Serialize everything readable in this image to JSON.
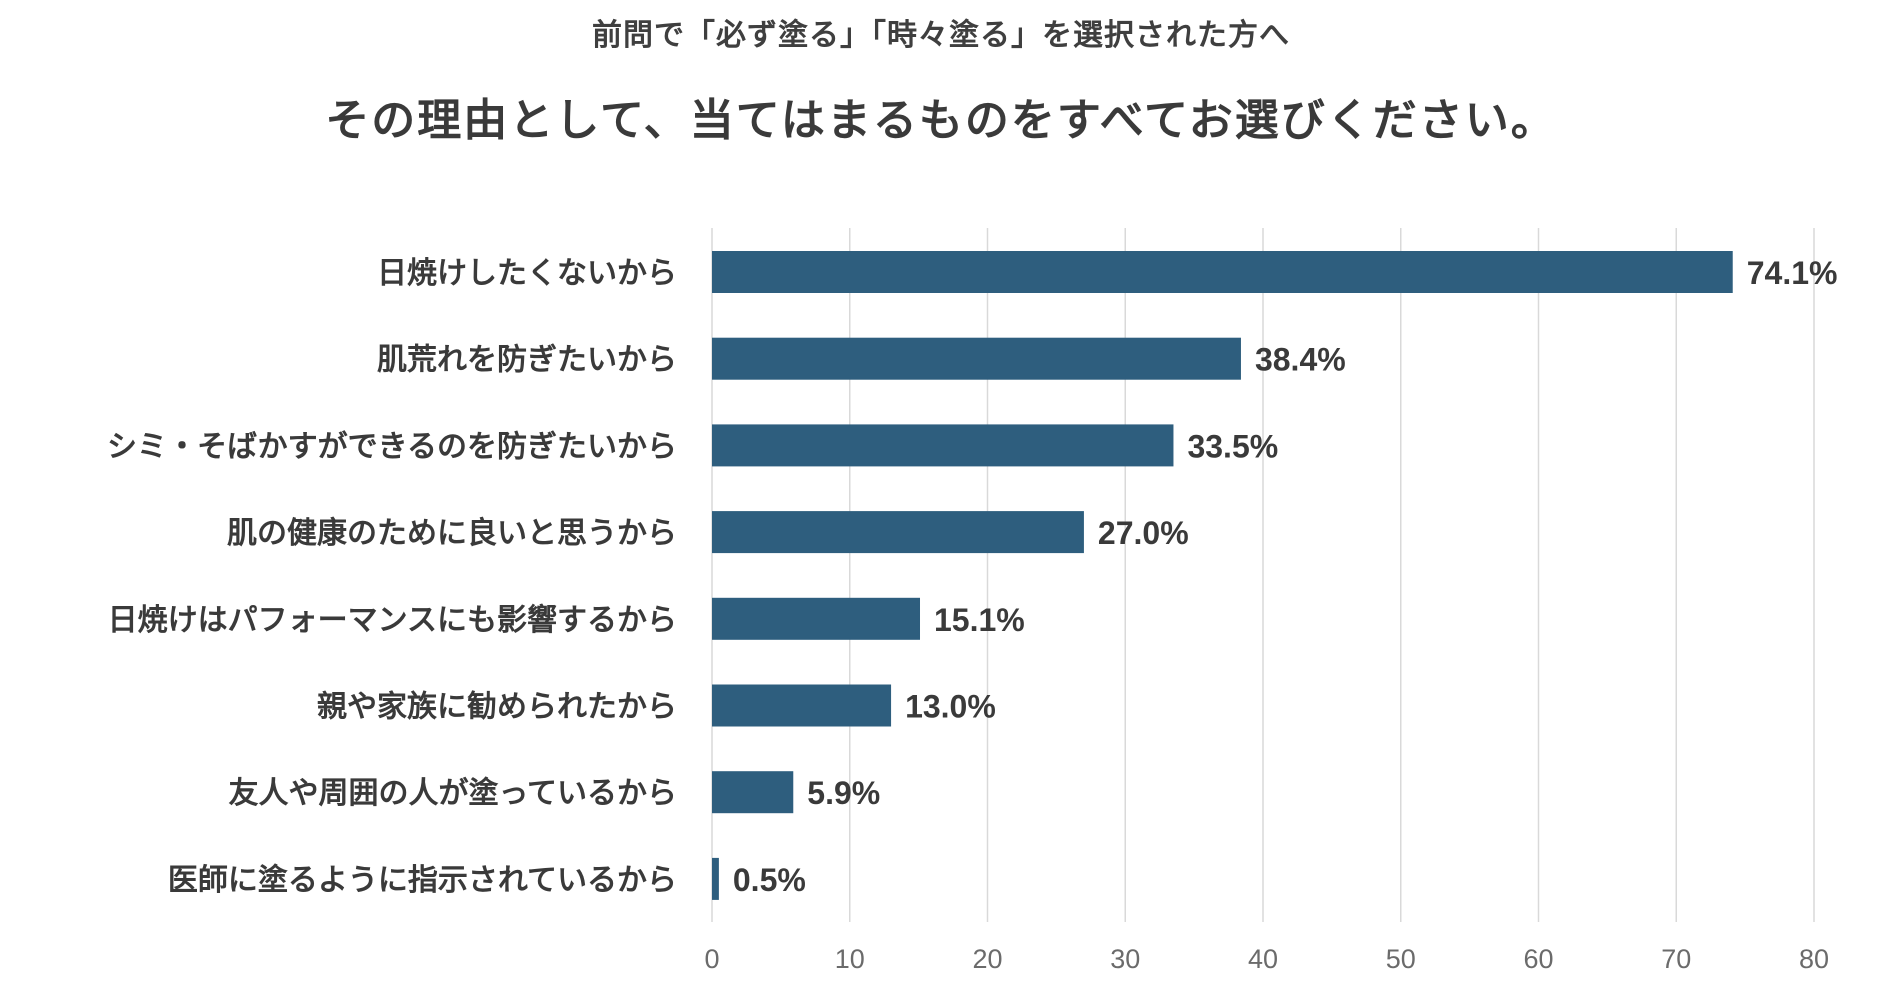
{
  "header": {
    "subtitle": "前問で「必ず塗る」「時々塗る」を選択された方へ",
    "title": "その理由として、当てはまるものをすべてお選びください。"
  },
  "chart_data": {
    "type": "bar",
    "orientation": "horizontal",
    "categories": [
      "日焼けしたくないから",
      "肌荒れを防ぎたいから",
      "シミ・そばかすができるのを防ぎたいから",
      "肌の健康のために良いと思うから",
      "日焼けはパフォーマンスにも影響するから",
      "親や家族に勧められたから",
      "友人や周囲の人が塗っているから",
      "医師に塗るように指示されているから"
    ],
    "values": [
      74.1,
      38.4,
      33.5,
      27.0,
      15.1,
      13.0,
      5.9,
      0.5
    ],
    "value_labels": [
      "74.1%",
      "38.4%",
      "33.5%",
      "27.0%",
      "15.1%",
      "13.0%",
      "5.9%",
      "0.5%"
    ],
    "xlim": [
      0,
      80
    ],
    "xticks": [
      "0",
      "10",
      "20",
      "30",
      "40",
      "50",
      "60",
      "70",
      "80"
    ],
    "grid": "vertical",
    "bar_color": "#2e5e7e",
    "grid_color": "#d9d9d9"
  }
}
